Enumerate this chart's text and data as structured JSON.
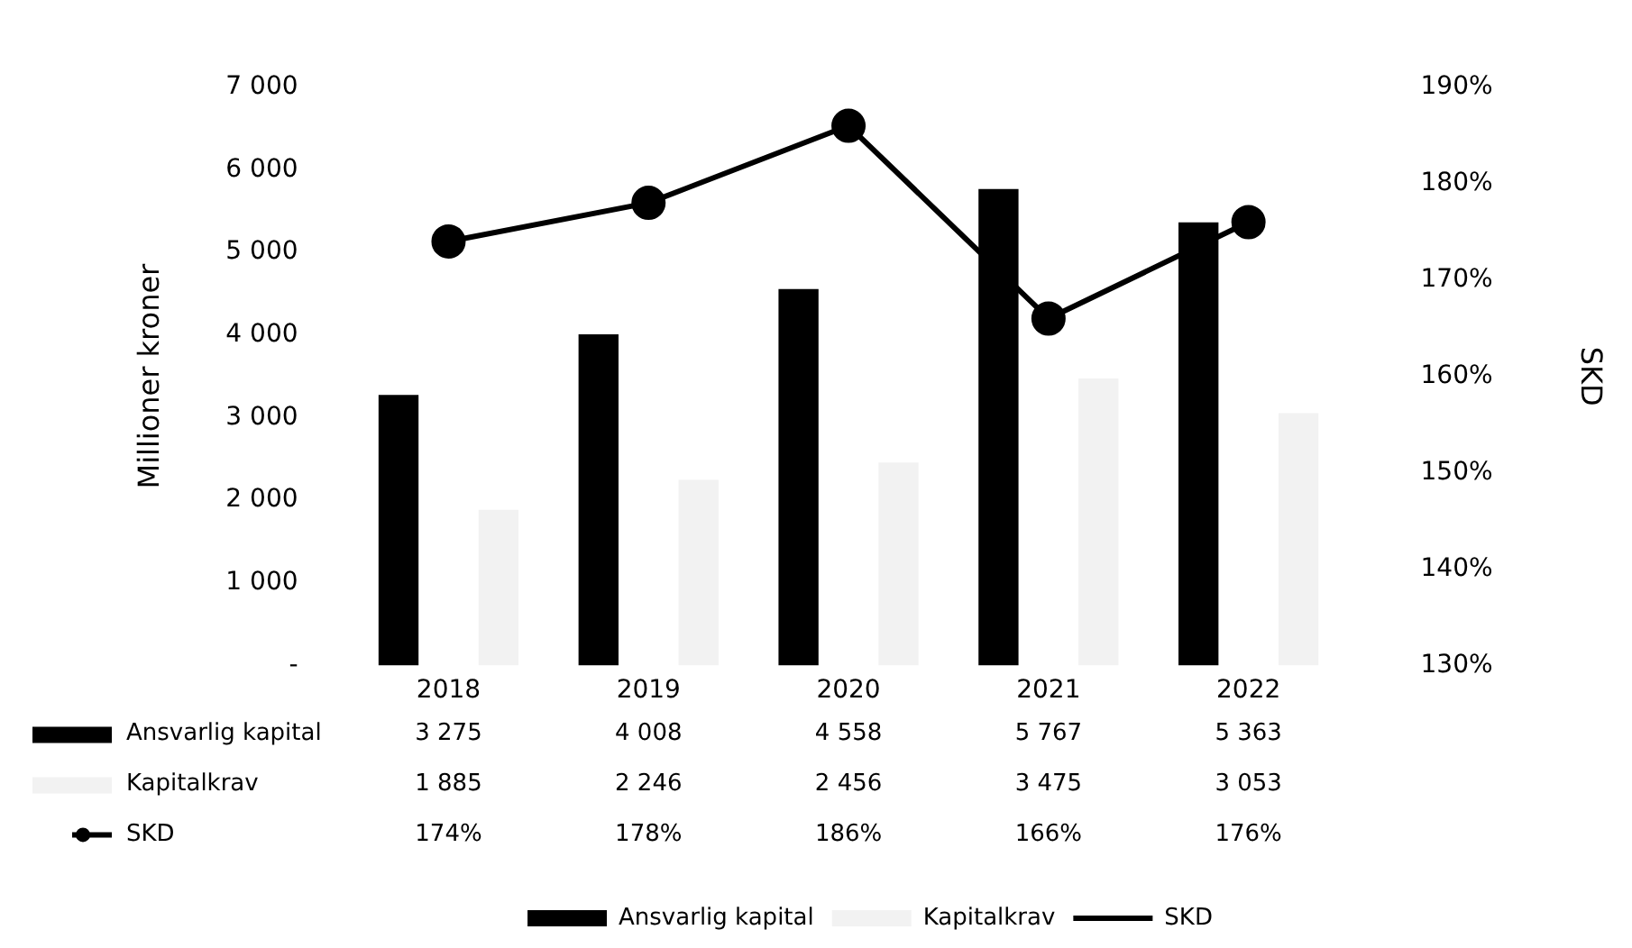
{
  "chart_data": {
    "type": "bar",
    "ylabel": "Millioner kroner",
    "y2label": "SKD",
    "categories": [
      "2018",
      "2019",
      "2020",
      "2021",
      "2022"
    ],
    "series": [
      {
        "name": "Ansvarlig kapital",
        "color": "#000000",
        "values": [
          3275,
          4008,
          4558,
          5767,
          5363
        ],
        "value_labels": [
          "3 275",
          "4 008",
          "4 558",
          "5 767",
          "5 363"
        ]
      },
      {
        "name": "Kapitalkrav",
        "color": "#f2f2f2",
        "values": [
          1885,
          2246,
          2456,
          3475,
          3053
        ],
        "value_labels": [
          "1 885",
          "2 246",
          "2 456",
          "3 475",
          "3 053"
        ]
      },
      {
        "name": "SKD",
        "type": "line",
        "axis": "y2",
        "color": "#000000",
        "values": [
          174,
          178,
          186,
          166,
          176
        ],
        "value_labels": [
          "174%",
          "178%",
          "186%",
          "166%",
          "176%"
        ]
      }
    ],
    "ylim": [
      0,
      7000
    ],
    "yticks": [
      {
        "value": 0,
        "label": "-"
      },
      {
        "value": 1000,
        "label": "1 000"
      },
      {
        "value": 2000,
        "label": "2 000"
      },
      {
        "value": 3000,
        "label": "3 000"
      },
      {
        "value": 4000,
        "label": "4 000"
      },
      {
        "value": 5000,
        "label": "5 000"
      },
      {
        "value": 6000,
        "label": "6 000"
      },
      {
        "value": 7000,
        "label": "7 000"
      }
    ],
    "y2lim": [
      130,
      190
    ],
    "y2ticks": [
      {
        "value": 130,
        "label": "130%"
      },
      {
        "value": 140,
        "label": "140%"
      },
      {
        "value": 150,
        "label": "150%"
      },
      {
        "value": 160,
        "label": "160%"
      },
      {
        "value": 170,
        "label": "170%"
      },
      {
        "value": 180,
        "label": "180%"
      },
      {
        "value": 190,
        "label": "190%"
      }
    ],
    "grid": false,
    "legend": "bottom",
    "marker": "circle",
    "line_style": "solid"
  }
}
